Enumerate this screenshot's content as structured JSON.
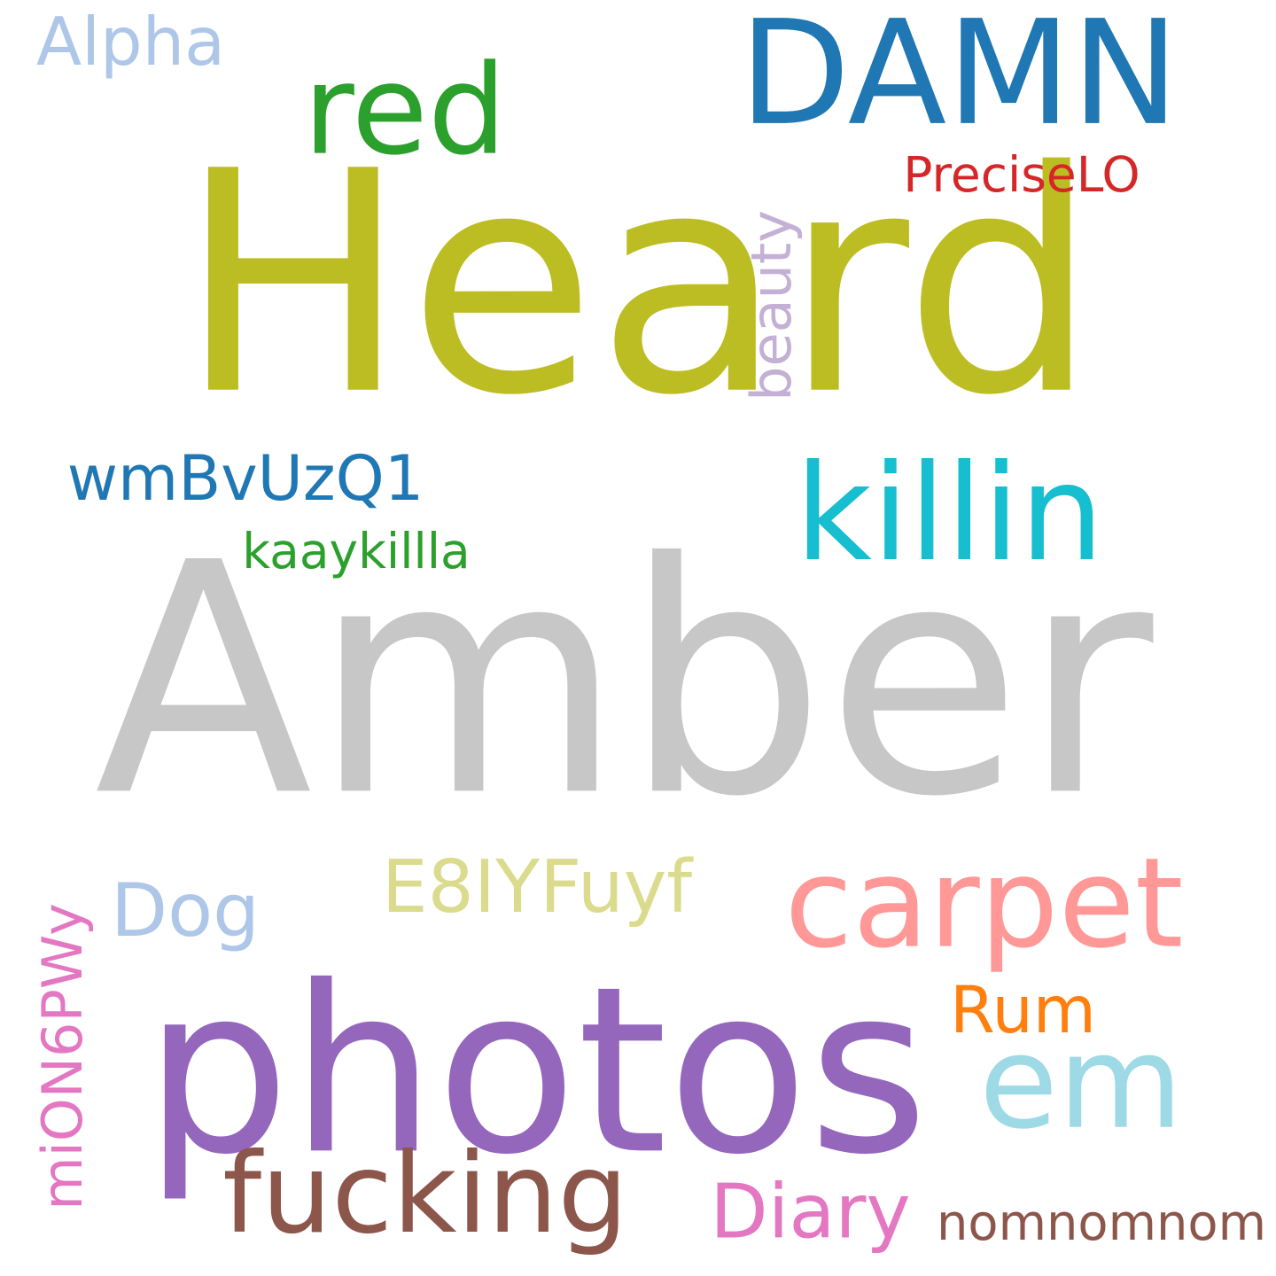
{
  "words": [
    {
      "text": "Heard",
      "color": "#bcbd22",
      "rotated": false
    },
    {
      "text": "Amber",
      "color": "#c7c7c7",
      "rotated": false
    },
    {
      "text": "photos",
      "color": "#9467bd",
      "rotated": false
    },
    {
      "text": "DAMN",
      "color": "#1f77b4",
      "rotated": false
    },
    {
      "text": "killin",
      "color": "#17becf",
      "rotated": false
    },
    {
      "text": "red",
      "color": "#2ca02c",
      "rotated": false
    },
    {
      "text": "em",
      "color": "#9edae5",
      "rotated": false
    },
    {
      "text": "fucking",
      "color": "#8c564b",
      "rotated": false
    },
    {
      "text": "carpet",
      "color": "#ff9896",
      "rotated": false
    },
    {
      "text": "E8IYFuyf",
      "color": "#dbdb8d",
      "rotated": false
    },
    {
      "text": "miON6PWy",
      "color": "#e377c2",
      "rotated": true
    },
    {
      "text": "wmBvUzQ1",
      "color": "#1f77b4",
      "rotated": false
    },
    {
      "text": "Dog",
      "color": "#aec7e8",
      "rotated": false
    },
    {
      "text": "Alpha",
      "color": "#aec7e8",
      "rotated": false
    },
    {
      "text": "Diary",
      "color": "#e377c2",
      "rotated": false
    },
    {
      "text": "PreciseLO",
      "color": "#d62728",
      "rotated": false
    },
    {
      "text": "beauty",
      "color": "#c5b0d5",
      "rotated": true
    },
    {
      "text": "kaaykillla",
      "color": "#2ca02c",
      "rotated": false
    },
    {
      "text": "Rum",
      "color": "#ff7f0e",
      "rotated": false
    },
    {
      "text": "nomnomnom",
      "color": "#8c564b",
      "rotated": false
    }
  ]
}
